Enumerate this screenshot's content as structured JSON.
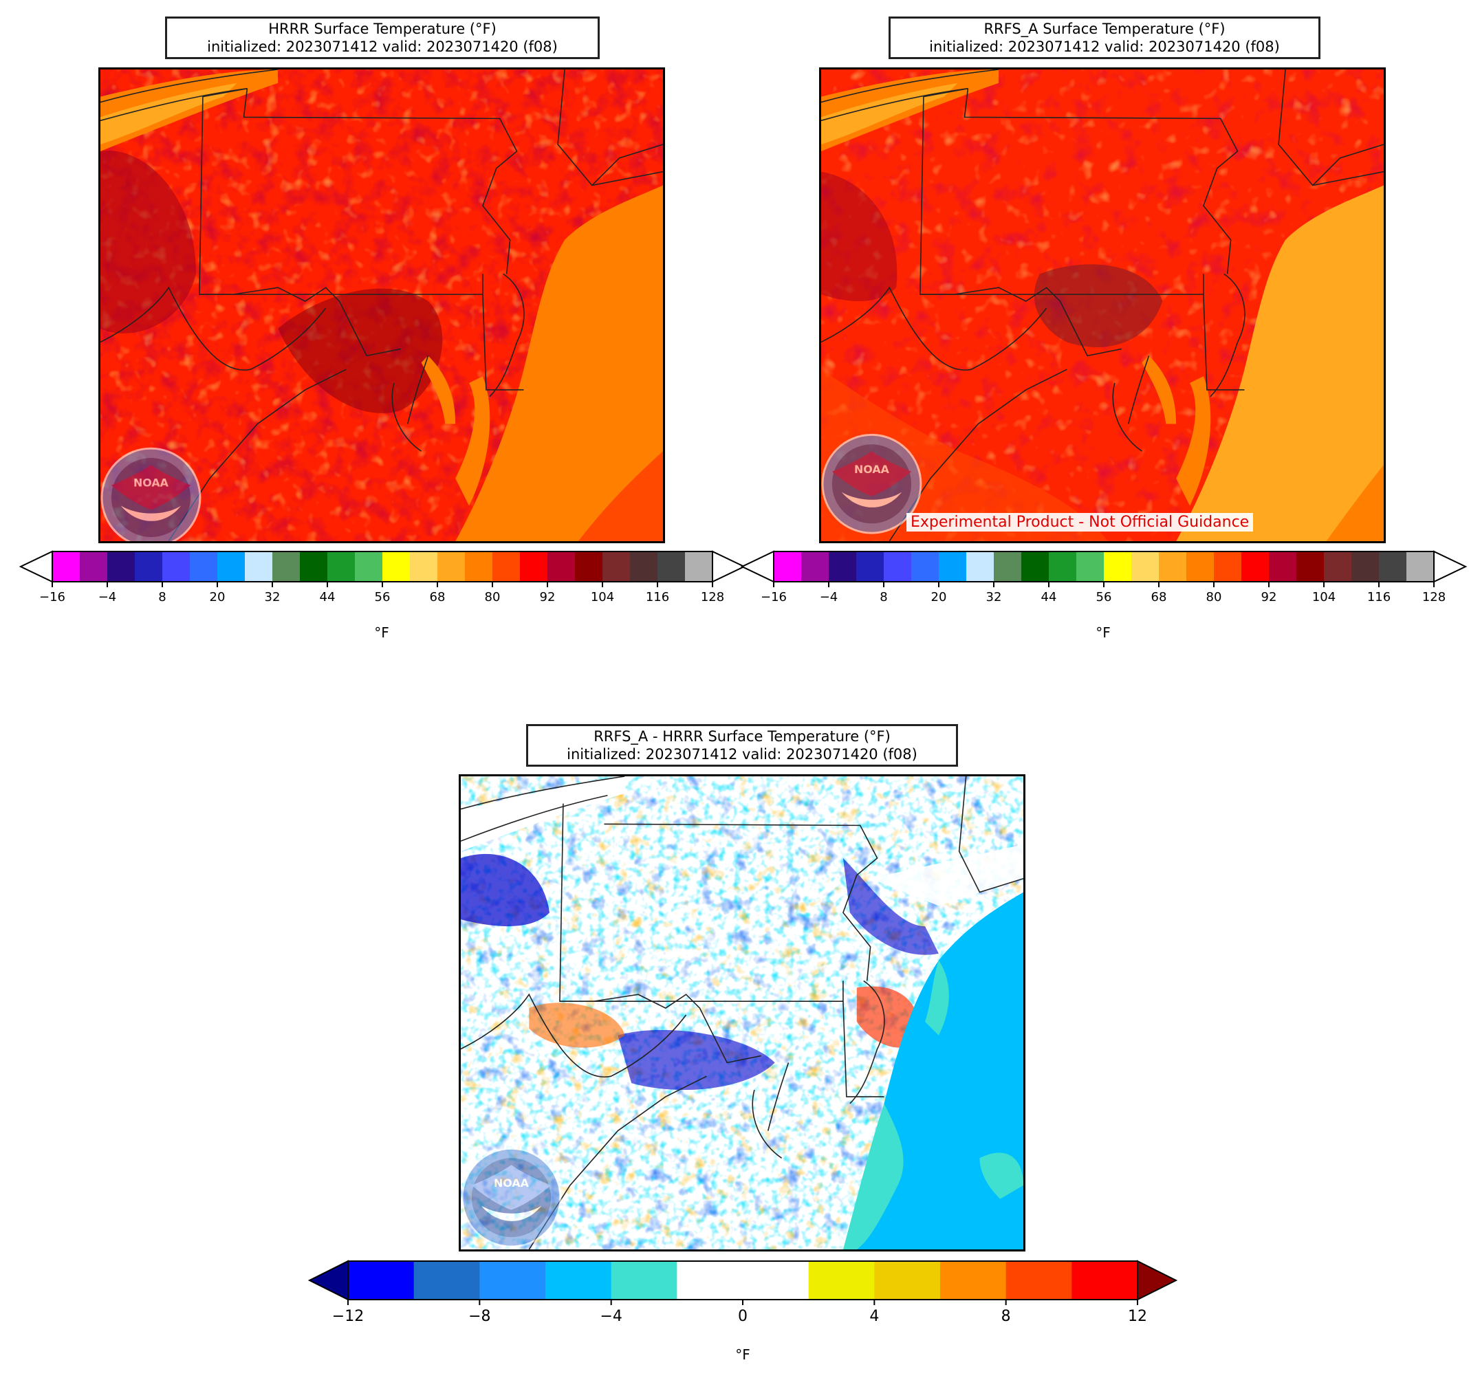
{
  "panels": {
    "hrrr": {
      "title_line1": "HRRR Surface Temperature (°F)",
      "title_line2": "initialized: 2023071412 valid: 2023071420 (f08)",
      "unit": "°F",
      "logo_text": "NOAA"
    },
    "rrfs": {
      "title_line1": "RRFS_A Surface Temperature (°F)",
      "title_line2": "initialized: 2023071412 valid: 2023071420 (f08)",
      "unit": "°F",
      "logo_text": "NOAA",
      "banner": "Experimental Product - Not Official Guidance"
    },
    "diff": {
      "title_line1": "RRFS_A - HRRR Surface Temperature (°F)",
      "title_line2": "initialized: 2023071412 valid: 2023071420 (f08)",
      "unit": "°F",
      "logo_text": "NOAA"
    }
  },
  "temp_colorbar": {
    "ticks": [
      "−16",
      "−4",
      "8",
      "20",
      "32",
      "44",
      "56",
      "68",
      "80",
      "92",
      "104",
      "116",
      "128"
    ],
    "colors": [
      "#ff00ff",
      "#9c0aa0",
      "#2a0a80",
      "#2222b8",
      "#4646ff",
      "#2f6cff",
      "#00a0ff",
      "#c8e8ff",
      "#5a8c5a",
      "#006400",
      "#1a9a2a",
      "#4cc060",
      "#ffff00",
      "#ffd860",
      "#ffa820",
      "#ff8000",
      "#ff4800",
      "#ff0000",
      "#b00030",
      "#8c0000",
      "#7a2a2a",
      "#503030",
      "#444444",
      "#b0b0b0"
    ],
    "extend_low": "#ffffff",
    "extend_high": "#ffffff"
  },
  "diff_colorbar": {
    "ticks": [
      "−12",
      "−8",
      "−4",
      "0",
      "4",
      "8",
      "12"
    ],
    "colors": [
      "#0000ff",
      "#1e6ec8",
      "#1e90ff",
      "#00bfff",
      "#40e0d0",
      "#ffffff",
      "#ffffff",
      "#eeee00",
      "#eecc00",
      "#ff8c00",
      "#ff4500",
      "#ff0000"
    ],
    "extend_low": "#00008b",
    "extend_high": "#8b0000"
  }
}
